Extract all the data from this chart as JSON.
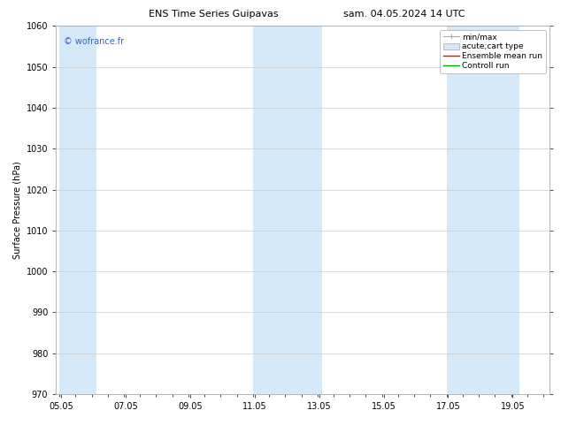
{
  "title_left": "ENS Time Series Guipavas",
  "title_right": "sam. 04.05.2024 14 UTC",
  "ylabel": "Surface Pressure (hPa)",
  "ylim": [
    970,
    1060
  ],
  "yticks": [
    970,
    980,
    990,
    1000,
    1010,
    1020,
    1030,
    1040,
    1050,
    1060
  ],
  "xlim_start": 4.9,
  "xlim_end": 20.2,
  "xtick_labels": [
    "05.05",
    "07.05",
    "09.05",
    "11.05",
    "13.05",
    "15.05",
    "17.05",
    "19.05"
  ],
  "xtick_positions": [
    5.05,
    7.05,
    9.05,
    11.05,
    13.05,
    15.05,
    17.05,
    19.05
  ],
  "shaded_bands": [
    {
      "x_start": 5.0,
      "x_end": 6.15,
      "color": "#d6e9f8"
    },
    {
      "x_start": 11.0,
      "x_end": 13.15,
      "color": "#d6e9f8"
    },
    {
      "x_start": 17.0,
      "x_end": 19.25,
      "color": "#d6e9f8"
    }
  ],
  "watermark": "© wofrance.fr",
  "watermark_color": "#3366cc",
  "bg_color": "#ffffff",
  "plot_bg_color": "#ffffff",
  "grid_color": "#cccccc",
  "title_fontsize": 8,
  "tick_fontsize": 7,
  "label_fontsize": 7,
  "legend_fontsize": 6.5
}
